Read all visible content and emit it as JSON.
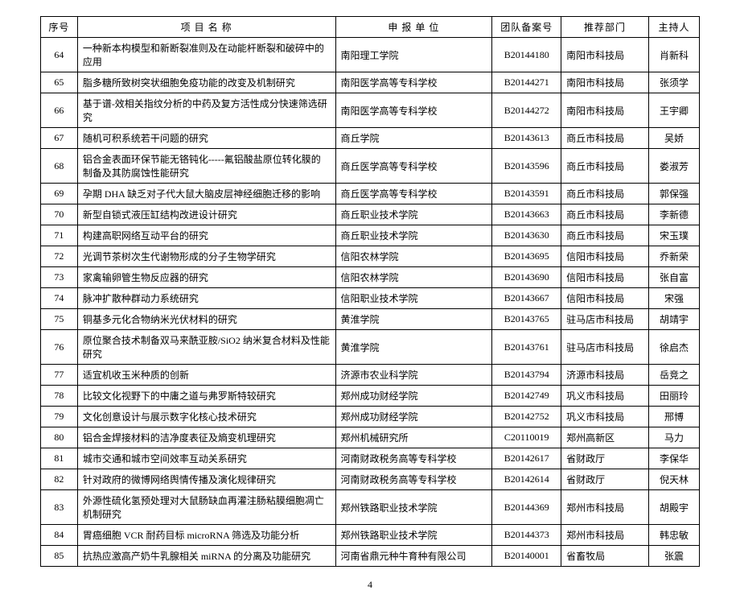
{
  "headers": {
    "seq": "序号",
    "name": "项 目 名 称",
    "unit": "申 报 单 位",
    "code": "团队备案号",
    "dept": "推荐部门",
    "host": "主持人"
  },
  "rows": [
    {
      "seq": "64",
      "name": "一种新本构模型和新断裂准则及在动能杆断裂和破碎中的应用",
      "unit": "南阳理工学院",
      "code": "B20144180",
      "dept": "南阳市科技局",
      "host": "肖新科"
    },
    {
      "seq": "65",
      "name": "脂多糖所致树突状细胞免疫功能的改变及机制研究",
      "unit": "南阳医学高等专科学校",
      "code": "B20144271",
      "dept": "南阳市科技局",
      "host": "张须学"
    },
    {
      "seq": "66",
      "name": "基于谱-效相关指纹分析的中药及复方活性成分快速筛选研究",
      "unit": "南阳医学高等专科学校",
      "code": "B20144272",
      "dept": "南阳市科技局",
      "host": "王宇卿"
    },
    {
      "seq": "67",
      "name": "随机可积系统若干问题的研究",
      "unit": "商丘学院",
      "code": "B20143613",
      "dept": "商丘市科技局",
      "host": "吴娇"
    },
    {
      "seq": "68",
      "name": "铝合金表面环保节能无铬钝化-----氟铝酸盐原位转化膜的制备及其防腐蚀性能研究",
      "unit": "商丘医学高等专科学校",
      "code": "B20143596",
      "dept": "商丘市科技局",
      "host": "娄淑芳"
    },
    {
      "seq": "69",
      "name": "孕期 DHA 缺乏对子代大鼠大脑皮层神经细胞迁移的影响",
      "unit": "商丘医学高等专科学校",
      "code": "B20143591",
      "dept": "商丘市科技局",
      "host": "郭保强"
    },
    {
      "seq": "70",
      "name": "新型自锁式液压缸结构改进设计研究",
      "unit": "商丘职业技术学院",
      "code": "B20143663",
      "dept": "商丘市科技局",
      "host": "李新德"
    },
    {
      "seq": "71",
      "name": "构建高职网络互动平台的研究",
      "unit": "商丘职业技术学院",
      "code": "B20143630",
      "dept": "商丘市科技局",
      "host": "宋玉璞"
    },
    {
      "seq": "72",
      "name": "光调节茶树次生代谢物形成的分子生物学研究",
      "unit": "信阳农林学院",
      "code": "B20143695",
      "dept": "信阳市科技局",
      "host": "乔新荣"
    },
    {
      "seq": "73",
      "name": "家禽输卵管生物反应器的研究",
      "unit": "信阳农林学院",
      "code": "B20143690",
      "dept": "信阳市科技局",
      "host": "张自富"
    },
    {
      "seq": "74",
      "name": "脉冲扩散种群动力系统研究",
      "unit": "信阳职业技术学院",
      "code": "B20143667",
      "dept": "信阳市科技局",
      "host": "宋强"
    },
    {
      "seq": "75",
      "name": "铜基多元化合物纳米光伏材料的研究",
      "unit": "黄淮学院",
      "code": "B20143765",
      "dept": "驻马店市科技局",
      "host": "胡靖宇"
    },
    {
      "seq": "76",
      "name": "原位聚合技术制备双马来酰亚胺/SiO2 纳米复合材料及性能研究",
      "unit": "黄淮学院",
      "code": "B20143761",
      "dept": "驻马店市科技局",
      "host": "徐启杰"
    },
    {
      "seq": "77",
      "name": "适宜机收玉米种质的创新",
      "unit": "济源市农业科学院",
      "code": "B20143794",
      "dept": "济源市科技局",
      "host": "岳竞之"
    },
    {
      "seq": "78",
      "name": "比较文化视野下的中庸之道与弗罗斯特较研究",
      "unit": "郑州成功财经学院",
      "code": "B20142749",
      "dept": "巩义市科技局",
      "host": "田丽玲"
    },
    {
      "seq": "79",
      "name": "文化创意设计与展示数字化核心技术研究",
      "unit": "郑州成功财经学院",
      "code": "B20142752",
      "dept": "巩义市科技局",
      "host": "邢博"
    },
    {
      "seq": "80",
      "name": "铝合金焊接材料的洁净度表征及熵变机理研究",
      "unit": "郑州机械研究所",
      "code": "C20110019",
      "dept": "郑州高新区",
      "host": "马力"
    },
    {
      "seq": "81",
      "name": "城市交通和城市空间效率互动关系研究",
      "unit": "河南财政税务高等专科学校",
      "code": "B20142617",
      "dept": "省财政厅",
      "host": "李保华"
    },
    {
      "seq": "82",
      "name": "针对政府的微博网络舆情传播及演化规律研究",
      "unit": "河南财政税务高等专科学校",
      "code": "B20142614",
      "dept": "省财政厅",
      "host": "倪天林"
    },
    {
      "seq": "83",
      "name": "外源性硫化氢预处理对大鼠肠缺血再灌注肠粘膜细胞凋亡机制研究",
      "unit": "郑州铁路职业技术学院",
      "code": "B20144369",
      "dept": "郑州市科技局",
      "host": "胡殿宇"
    },
    {
      "seq": "84",
      "name": "胃癌细胞 VCR 耐药目标 microRNA 筛选及功能分析",
      "unit": "郑州铁路职业技术学院",
      "code": "B20144373",
      "dept": "郑州市科技局",
      "host": "韩忠敏"
    },
    {
      "seq": "85",
      "name": "抗热应激高产奶牛乳腺相关 miRNA 的分离及功能研究",
      "unit": "河南省鼎元种牛育种有限公司",
      "code": "B20140001",
      "dept": "省畜牧局",
      "host": "张震"
    }
  ],
  "pageNumber": "4"
}
